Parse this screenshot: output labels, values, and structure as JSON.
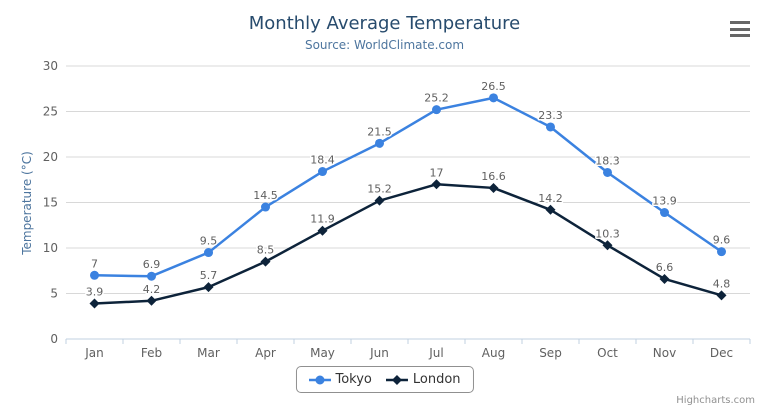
{
  "chart_data": {
    "type": "line",
    "title": "Monthly Average Temperature",
    "subtitle": "Source: WorldClimate.com",
    "xlabel": "",
    "ylabel": "Temperature (°C)",
    "categories": [
      "Jan",
      "Feb",
      "Mar",
      "Apr",
      "May",
      "Jun",
      "Jul",
      "Aug",
      "Sep",
      "Oct",
      "Nov",
      "Dec"
    ],
    "series": [
      {
        "name": "Tokyo",
        "color": "#3b82e0",
        "marker": "circle",
        "values": [
          7,
          6.9,
          9.5,
          14.5,
          18.4,
          21.5,
          25.2,
          26.5,
          23.3,
          18.3,
          13.9,
          9.6
        ]
      },
      {
        "name": "London",
        "color": "#0d233a",
        "marker": "diamond",
        "values": [
          3.9,
          4.2,
          5.7,
          8.5,
          11.9,
          15.2,
          17,
          16.6,
          14.2,
          10.3,
          6.6,
          4.8
        ]
      }
    ],
    "ylim": [
      0,
      30
    ],
    "ytick_interval": 5,
    "grid": true,
    "legend_position": "bottom",
    "data_labels": true,
    "colors": {
      "grid": "#d8d8d8",
      "axis_line": "#c0d0e0",
      "axis_label": "#606060",
      "data_label": "#606060",
      "title": "#274b6d",
      "subtitle": "#4d759e",
      "legend_border": "#909090",
      "legend_text": "#333333"
    }
  },
  "credits": {
    "text": "Highcharts.com"
  }
}
